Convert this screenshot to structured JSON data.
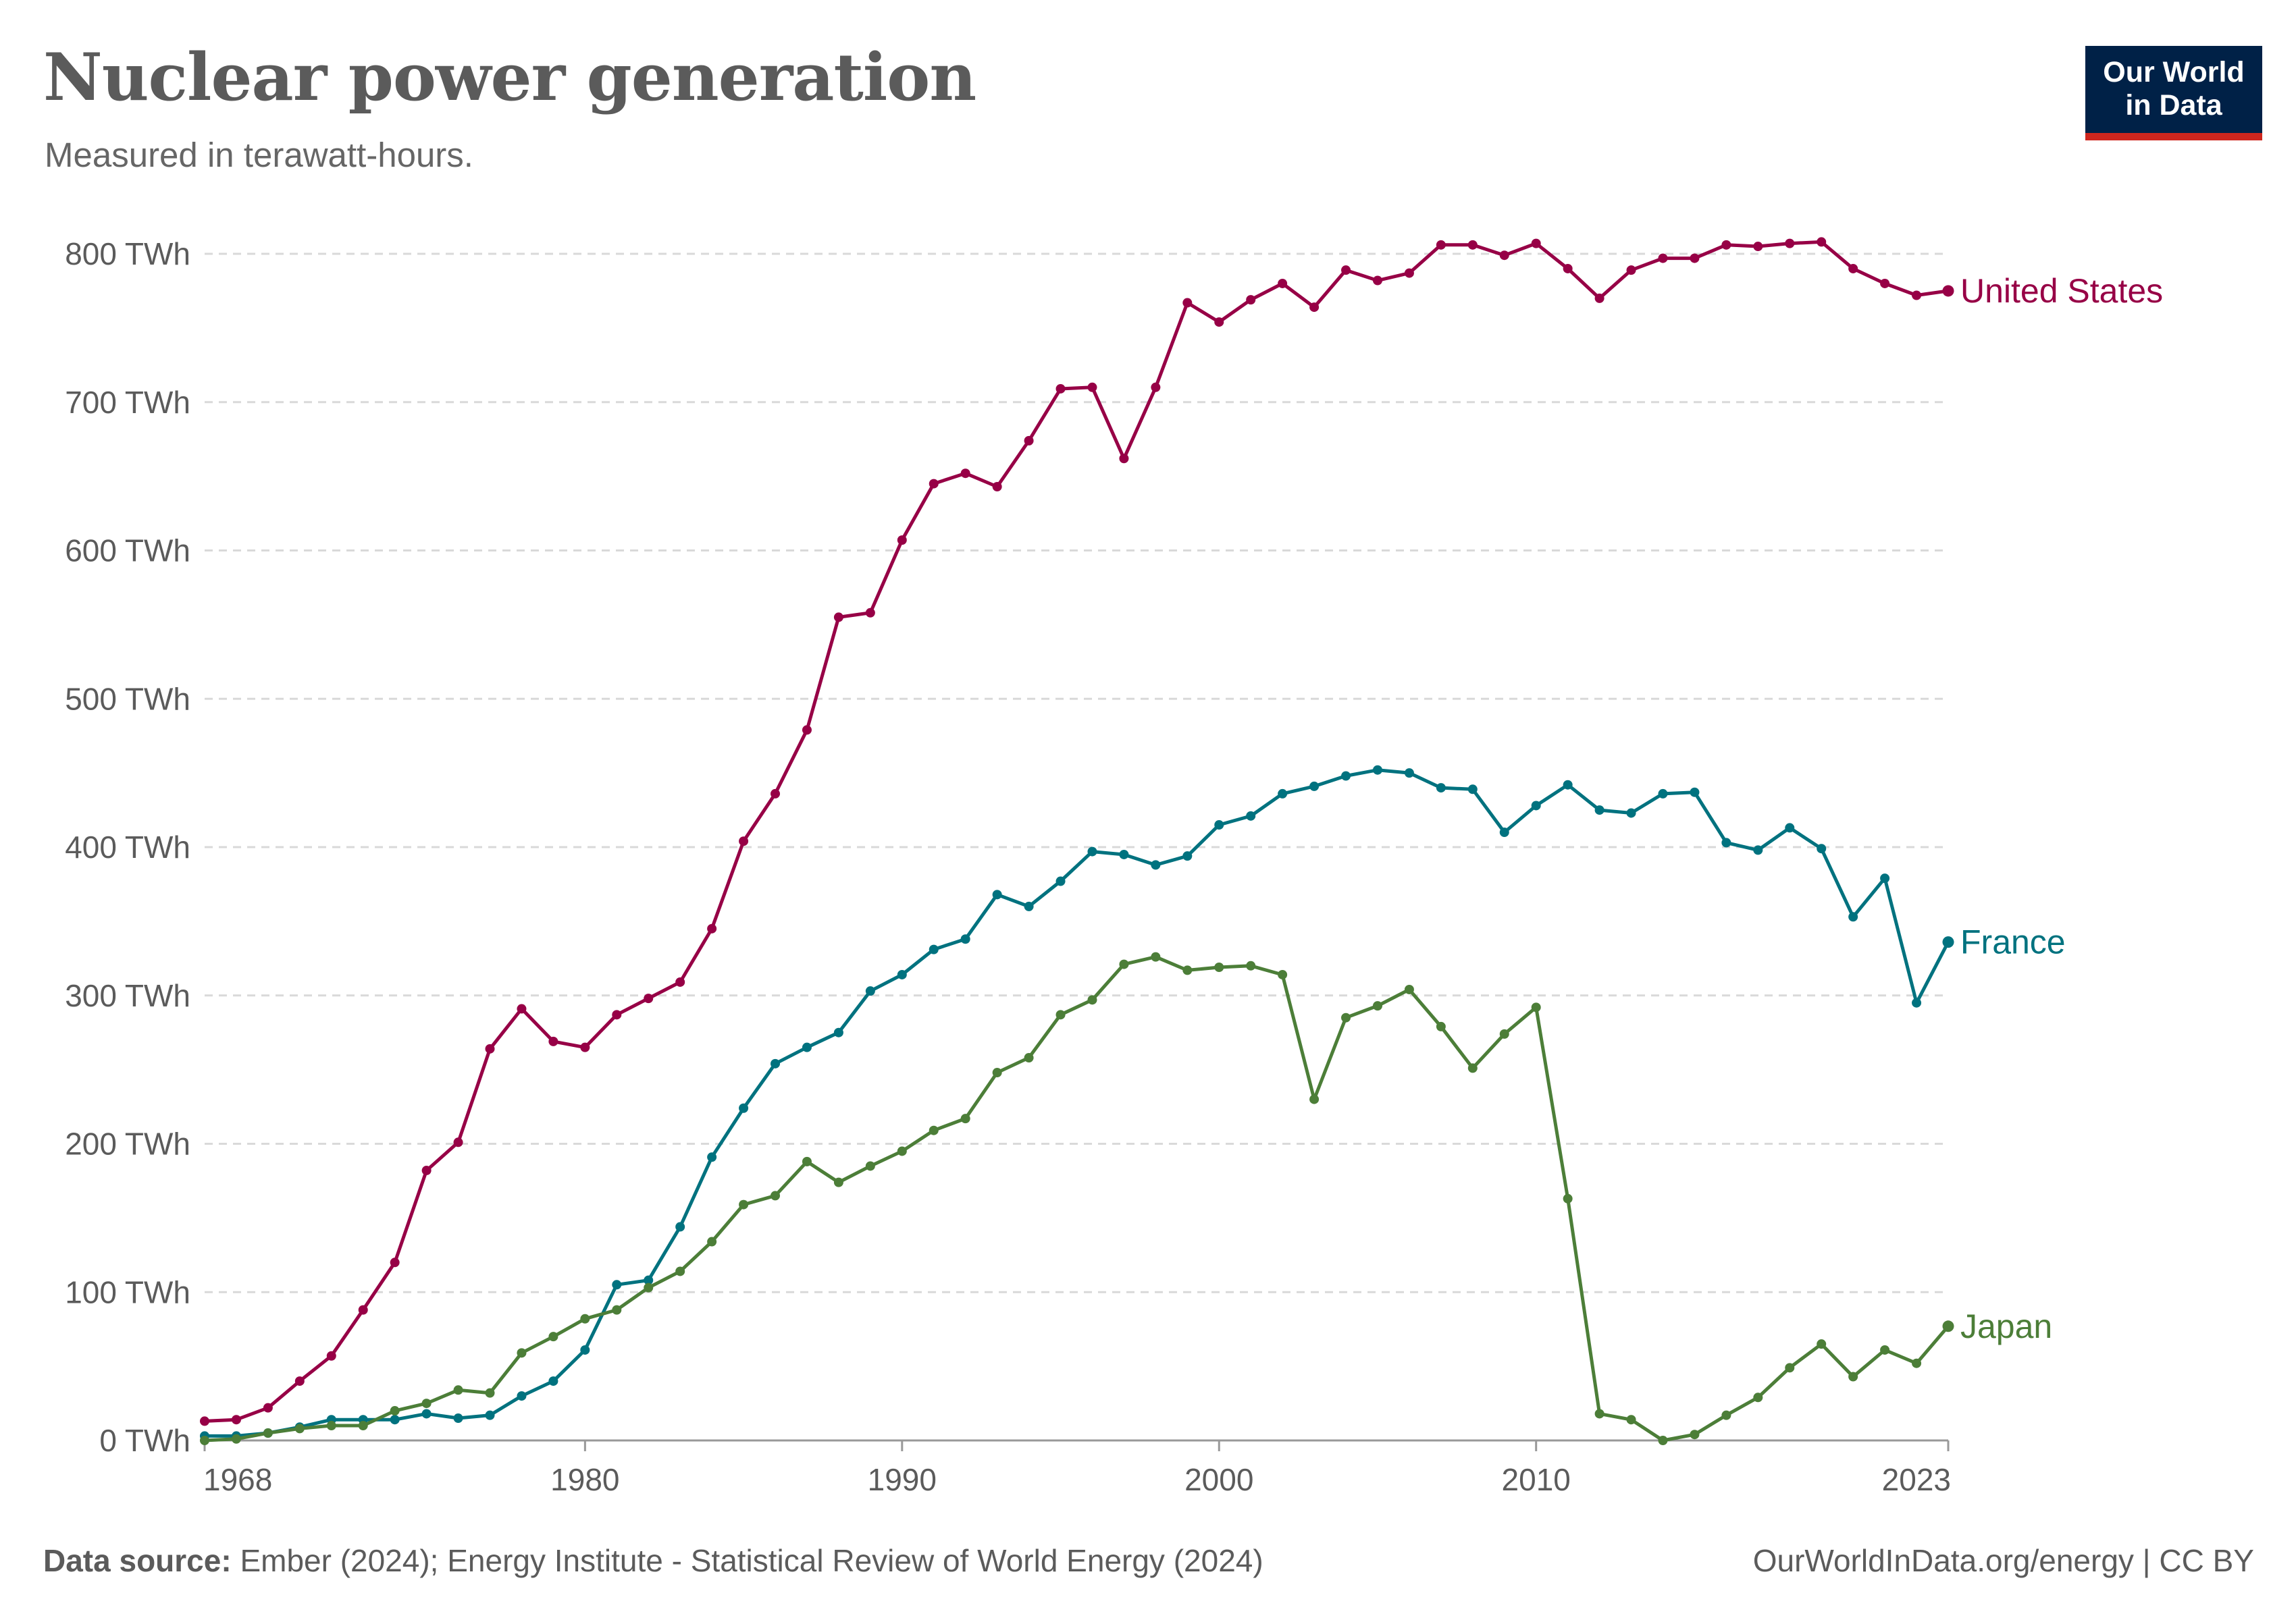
{
  "header": {
    "title": "Nuclear power generation",
    "subtitle": "Measured in terawatt-hours."
  },
  "logo": {
    "line1": "Our World",
    "line2": "in Data"
  },
  "footer": {
    "source_label": "Data source:",
    "source_text": "Ember (2024); Energy Institute - Statistical Review of World Energy (2024)",
    "url_license": "OurWorldInData.org/energy | CC BY"
  },
  "colors": {
    "united_states": "#970046",
    "france": "#00727f",
    "japan": "#4c7e38",
    "grid": "#d9d9d9",
    "axis": "#999999",
    "text": "#5b5b5b",
    "logo_bg": "#002147",
    "logo_bar": "#ce261e"
  },
  "chart_data": {
    "type": "line",
    "title": "Nuclear power generation",
    "subtitle": "Measured in terawatt-hours.",
    "xlabel": "",
    "ylabel": "",
    "xlim": [
      1968,
      2023
    ],
    "ylim": [
      0,
      800
    ],
    "x_ticks": [
      1968,
      1980,
      1990,
      2000,
      2010,
      2023
    ],
    "y_ticks": [
      0,
      100,
      200,
      300,
      400,
      500,
      600,
      700,
      800
    ],
    "y_tick_labels": [
      "0 TWh",
      "100 TWh",
      "200 TWh",
      "300 TWh",
      "400 TWh",
      "500 TWh",
      "600 TWh",
      "700 TWh",
      "800 TWh"
    ],
    "grid": "horizontal dashed",
    "legend": "line-end labels (right)",
    "series": [
      {
        "name": "United States",
        "color": "#970046",
        "x": [
          1968,
          1969,
          1970,
          1971,
          1972,
          1973,
          1974,
          1975,
          1976,
          1977,
          1978,
          1979,
          1980,
          1981,
          1982,
          1983,
          1984,
          1985,
          1986,
          1987,
          1988,
          1989,
          1990,
          1991,
          1992,
          1993,
          1994,
          1995,
          1996,
          1997,
          1998,
          1999,
          2000,
          2001,
          2002,
          2003,
          2004,
          2005,
          2006,
          2007,
          2008,
          2009,
          2010,
          2011,
          2012,
          2013,
          2014,
          2015,
          2016,
          2017,
          2018,
          2019,
          2020,
          2021,
          2022,
          2023
        ],
        "values": [
          13,
          14,
          22,
          40,
          57,
          88,
          120,
          182,
          201,
          264,
          291,
          269,
          265,
          287,
          298,
          309,
          345,
          404,
          436,
          479,
          555,
          558,
          607,
          645,
          652,
          643,
          674,
          709,
          710,
          662,
          710,
          767,
          754,
          769,
          780,
          764,
          789,
          782,
          787,
          806,
          806,
          799,
          807,
          790,
          770,
          789,
          797,
          797,
          806,
          805,
          807,
          808,
          790,
          780,
          772,
          775
        ]
      },
      {
        "name": "France",
        "color": "#00727f",
        "x": [
          1968,
          1969,
          1970,
          1971,
          1972,
          1973,
          1974,
          1975,
          1976,
          1977,
          1978,
          1979,
          1980,
          1981,
          1982,
          1983,
          1984,
          1985,
          1986,
          1987,
          1988,
          1989,
          1990,
          1991,
          1992,
          1993,
          1994,
          1995,
          1996,
          1997,
          1998,
          1999,
          2000,
          2001,
          2002,
          2003,
          2004,
          2005,
          2006,
          2007,
          2008,
          2009,
          2010,
          2011,
          2012,
          2013,
          2014,
          2015,
          2016,
          2017,
          2018,
          2019,
          2020,
          2021,
          2022,
          2023
        ],
        "values": [
          3,
          3,
          5,
          9,
          14,
          14,
          14,
          18,
          15,
          17,
          30,
          40,
          61,
          105,
          108,
          144,
          191,
          224,
          254,
          265,
          275,
          303,
          314,
          331,
          338,
          368,
          360,
          377,
          397,
          395,
          388,
          394,
          415,
          421,
          436,
          441,
          448,
          452,
          450,
          440,
          439,
          410,
          428,
          442,
          425,
          423,
          436,
          437,
          403,
          398,
          413,
          399,
          353,
          379,
          295,
          336
        ]
      },
      {
        "name": "Japan",
        "color": "#4c7e38",
        "x": [
          1968,
          1969,
          1970,
          1971,
          1972,
          1973,
          1974,
          1975,
          1976,
          1977,
          1978,
          1979,
          1980,
          1981,
          1982,
          1983,
          1984,
          1985,
          1986,
          1987,
          1988,
          1989,
          1990,
          1991,
          1992,
          1993,
          1994,
          1995,
          1996,
          1997,
          1998,
          1999,
          2000,
          2001,
          2002,
          2003,
          2004,
          2005,
          2006,
          2007,
          2008,
          2009,
          2010,
          2011,
          2012,
          2013,
          2014,
          2015,
          2016,
          2017,
          2018,
          2019,
          2020,
          2021,
          2022,
          2023
        ],
        "values": [
          0,
          1,
          5,
          8,
          10,
          10,
          20,
          25,
          34,
          32,
          59,
          70,
          82,
          88,
          103,
          114,
          134,
          159,
          165,
          188,
          174,
          185,
          195,
          209,
          217,
          248,
          258,
          287,
          297,
          321,
          326,
          317,
          319,
          320,
          314,
          230,
          285,
          293,
          304,
          279,
          251,
          274,
          292,
          163,
          18,
          14,
          0,
          4,
          17,
          29,
          49,
          65,
          43,
          61,
          52,
          77
        ]
      }
    ]
  }
}
